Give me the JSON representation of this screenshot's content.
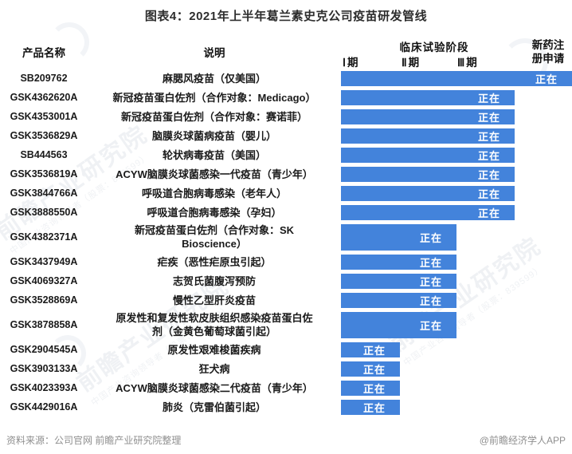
{
  "title": "图表4：2021年上半年葛兰素史克公司疫苗研发管线",
  "columns": {
    "product": "产品名称",
    "description": "说明",
    "clinical": "临床试验阶段",
    "phases": [
      "Ⅰ期",
      "Ⅱ期",
      "Ⅲ期"
    ],
    "registration": "新药注册申请"
  },
  "status_label": "正在",
  "bar_color": "#4383DB",
  "rows": [
    {
      "product": "SB209762",
      "description": "麻腮风疫苗（仅美国）",
      "stage": "registration"
    },
    {
      "product": "GSK4362620A",
      "description": "新冠疫苗蛋白佐剂（合作对象：Medicago）",
      "stage": "phase3"
    },
    {
      "product": "GSK4353001A",
      "description": "新冠疫苗蛋白佐剂（合作对象：赛诺菲）",
      "stage": "phase3"
    },
    {
      "product": "GSK3536829A",
      "description": "脑膜炎球菌病疫苗（婴儿）",
      "stage": "phase3"
    },
    {
      "product": "SB444563",
      "description": "轮状病毒疫苗（美国）",
      "stage": "phase3"
    },
    {
      "product": "GSK3536819A",
      "description": "ACYW脑膜炎球菌感染一代疫苗（青少年）",
      "stage": "phase3"
    },
    {
      "product": "GSK3844766A",
      "description": "呼吸道合胞病毒感染（老年人）",
      "stage": "phase3"
    },
    {
      "product": "GSK3888550A",
      "description": "呼吸道合胞病毒感染（孕妇）",
      "stage": "phase3"
    },
    {
      "product": "GSK4382371A",
      "description": "新冠疫苗蛋白佐剂（合作对象：SK\nBioscience）",
      "stage": "phase2"
    },
    {
      "product": "GSK3437949A",
      "description": "疟疾（恶性疟原虫引起）",
      "stage": "phase2"
    },
    {
      "product": "GSK4069327A",
      "description": "志贺氏菌腹泻预防",
      "stage": "phase2"
    },
    {
      "product": "GSK3528869A",
      "description": "慢性乙型肝炎疫苗",
      "stage": "phase2"
    },
    {
      "product": "GSK3878858A",
      "description": "原发性和复发性软皮肤组织感染疫苗蛋白佐\n剂（金黄色葡萄球菌引起）",
      "stage": "phase2"
    },
    {
      "product": "GSK2904545A",
      "description": "原发性艰难梭菌疾病",
      "stage": "phase1"
    },
    {
      "product": "GSK3903133A",
      "description": "狂犬病",
      "stage": "phase1"
    },
    {
      "product": "GSK4023393A",
      "description": "ACYW脑膜炎球菌感染二代疫苗（青少年）",
      "stage": "phase1"
    },
    {
      "product": "GSK4429016A",
      "description": "肺炎（克雷伯菌引起）",
      "stage": "phase1"
    }
  ],
  "footer": {
    "source": "资料来源：公司官网 前瞻产业研究院整理",
    "credit": "@前瞻经济学人APP"
  },
  "watermark": {
    "main": "前瞻产业研究院",
    "sub": "中国产业咨询领导者（股票：839599）"
  },
  "chart_data": {
    "type": "bar",
    "subtype": "pipeline-stage-chart",
    "orientation": "horizontal",
    "title": "图表4：2021年上半年葛兰素史克公司疫苗研发管线",
    "stage_axis": [
      "Ⅰ期",
      "Ⅱ期",
      "Ⅲ期",
      "新药注册申请"
    ],
    "categories": [
      "SB209762",
      "GSK4362620A",
      "GSK4353001A",
      "GSK3536829A",
      "SB444563",
      "GSK3536819A",
      "GSK3844766A",
      "GSK3888550A",
      "GSK4382371A",
      "GSK3437949A",
      "GSK4069327A",
      "GSK3528869A",
      "GSK3878858A",
      "GSK2904545A",
      "GSK3903133A",
      "GSK4023393A",
      "GSK4429016A"
    ],
    "descriptions": [
      "麻腮风疫苗（仅美国）",
      "新冠疫苗蛋白佐剂（合作对象：Medicago）",
      "新冠疫苗蛋白佐剂（合作对象：赛诺菲）",
      "脑膜炎球菌病疫苗（婴儿）",
      "轮状病毒疫苗（美国）",
      "ACYW脑膜炎球菌感染一代疫苗（青少年）",
      "呼吸道合胞病毒感染（老年人）",
      "呼吸道合胞病毒感染（孕妇）",
      "新冠疫苗蛋白佐剂（合作对象：SK Bioscience）",
      "疟疾（恶性疟原虫引起）",
      "志贺氏菌腹泻预防",
      "慢性乙型肝炎疫苗",
      "原发性和复发性软皮肤组织感染疫苗蛋白佐剂（金黄色葡萄球菌引起）",
      "原发性艰难梭菌疾病",
      "狂犬病",
      "ACYW脑膜炎球菌感染二代疫苗（青少年）",
      "肺炎（克雷伯菌引起）"
    ],
    "values": [
      4,
      3,
      3,
      3,
      3,
      3,
      3,
      3,
      2,
      2,
      2,
      2,
      2,
      1,
      1,
      1,
      1
    ],
    "value_scale": "1=Ⅰ期, 2=Ⅱ期, 3=Ⅲ期, 4=新药注册申请",
    "bar_label": "正在",
    "bar_color": "#4383DB",
    "legend": "none",
    "grid": false
  }
}
